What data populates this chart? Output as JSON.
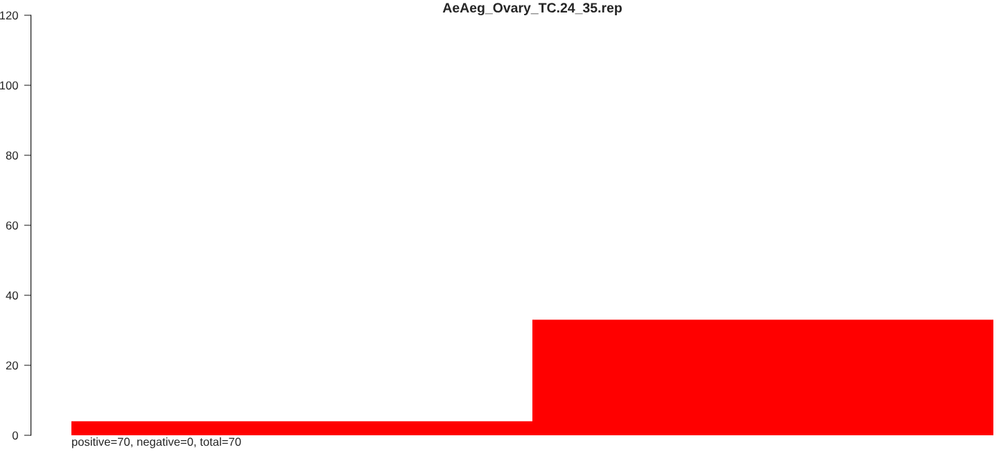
{
  "chart_data": {
    "type": "bar",
    "title": "AeAeg_Ovary_TC.24_35.rep",
    "categories": [
      null,
      null
    ],
    "values": [
      4,
      33
    ],
    "color": "#ff0000",
    "ylim": [
      0,
      120
    ],
    "yticks": [
      0,
      20,
      40,
      60,
      80,
      100,
      120
    ],
    "tick_labels": "y",
    "grid": false,
    "annotations": [
      "positive=70, negative=0, total=70"
    ]
  }
}
